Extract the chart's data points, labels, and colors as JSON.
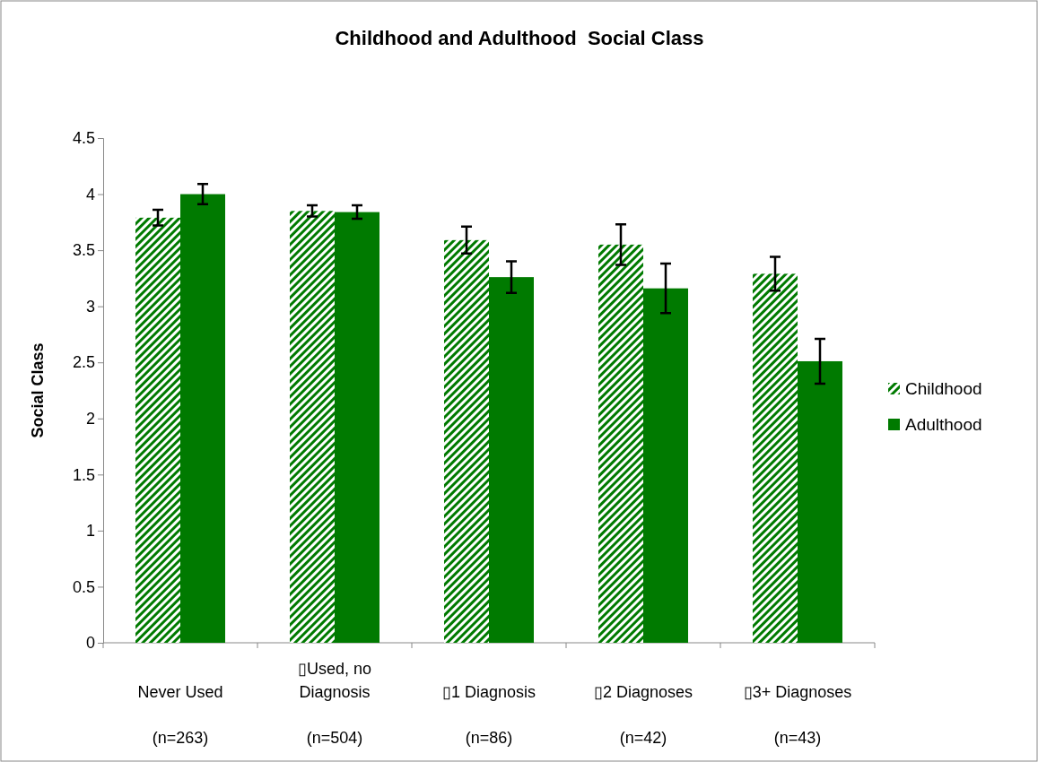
{
  "chart_data": {
    "type": "bar",
    "title": "Childhood and Adulthood  Social Class",
    "ylabel": "Social Class",
    "categories": [
      "Never Used\n(n=263)",
      "▯Used, no\nDiagnosis\n(n=504)",
      "▯1 Diagnosis\n(n=86)",
      "▯2 Diagnoses\n(n=42)",
      "▯3+ Diagnoses\n(n=43)"
    ],
    "series": [
      {
        "name": "Childhood",
        "color": "#007a00",
        "values": [
          3.79,
          3.85,
          3.59,
          3.55,
          3.29
        ],
        "errors": [
          0.07,
          0.05,
          0.12,
          0.18,
          0.15
        ]
      },
      {
        "name": "Adulthood",
        "color": "#007a00",
        "values": [
          4.0,
          3.84,
          3.26,
          3.16,
          2.51
        ],
        "errors": [
          0.09,
          0.06,
          0.14,
          0.22,
          0.2
        ]
      }
    ],
    "ylim": [
      0,
      4.5
    ],
    "yticks": [
      0,
      0.5,
      1,
      1.5,
      2,
      2.5,
      3,
      3.5,
      4,
      4.5
    ],
    "grid": false,
    "legend": "right"
  }
}
